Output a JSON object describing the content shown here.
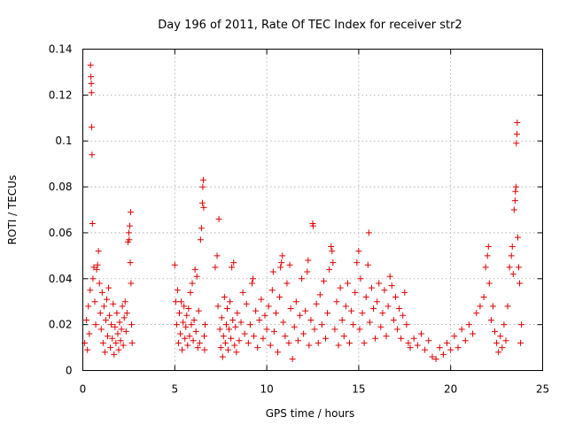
{
  "chart_data": {
    "type": "scatter",
    "title": "Day 196 of 2011, Rate Of TEC Index for receiver str2",
    "xlabel": "GPS time / hours",
    "ylabel": "ROTI / TECUs",
    "xlim": [
      0,
      25
    ],
    "ylim": [
      0,
      0.14
    ],
    "xticks": [
      "0",
      "5",
      "10",
      "15",
      "20",
      "25"
    ],
    "yticks": [
      "0",
      "0.02",
      "0.04",
      "0.06",
      "0.08",
      "0.1",
      "0.12",
      "0.14"
    ],
    "grid": true,
    "marker": "+",
    "color": "#e00000",
    "series": [
      {
        "points": [
          [
            0.1,
            0.012
          ],
          [
            0.2,
            0.022
          ],
          [
            0.25,
            0.009
          ],
          [
            0.3,
            0.028
          ],
          [
            0.35,
            0.016
          ],
          [
            0.4,
            0.035
          ],
          [
            0.42,
            0.133
          ],
          [
            0.44,
            0.128
          ],
          [
            0.46,
            0.125
          ],
          [
            0.47,
            0.121
          ],
          [
            0.48,
            0.106
          ],
          [
            0.5,
            0.094
          ],
          [
            0.52,
            0.064
          ],
          [
            0.55,
            0.04
          ],
          [
            0.6,
            0.045
          ],
          [
            0.65,
            0.03
          ],
          [
            0.7,
            0.02
          ],
          [
            0.75,
            0.044
          ],
          [
            0.8,
            0.046
          ],
          [
            0.85,
            0.052
          ],
          [
            0.9,
            0.038
          ],
          [
            0.95,
            0.025
          ],
          [
            1.0,
            0.018
          ],
          [
            1.05,
            0.034
          ],
          [
            1.1,
            0.012
          ],
          [
            1.15,
            0.028
          ],
          [
            1.2,
            0.008
          ],
          [
            1.25,
            0.022
          ],
          [
            1.3,
            0.031
          ],
          [
            1.35,
            0.015
          ],
          [
            1.4,
            0.036
          ],
          [
            1.45,
            0.024
          ],
          [
            1.5,
            0.01
          ],
          [
            1.55,
            0.02
          ],
          [
            1.6,
            0.014
          ],
          [
            1.65,
            0.029
          ],
          [
            1.7,
            0.007
          ],
          [
            1.75,
            0.019
          ],
          [
            1.8,
            0.012
          ],
          [
            1.85,
            0.025
          ],
          [
            1.9,
            0.016
          ],
          [
            1.95,
            0.009
          ],
          [
            2.0,
            0.021
          ],
          [
            2.05,
            0.013
          ],
          [
            2.1,
            0.018
          ],
          [
            2.15,
            0.028
          ],
          [
            2.2,
            0.011
          ],
          [
            2.25,
            0.023
          ],
          [
            2.3,
            0.03
          ],
          [
            2.35,
            0.017
          ],
          [
            2.4,
            0.025
          ],
          [
            2.45,
            0.056
          ],
          [
            2.5,
            0.06
          ],
          [
            2.52,
            0.057
          ],
          [
            2.55,
            0.063
          ],
          [
            2.58,
            0.047
          ],
          [
            2.6,
            0.069
          ],
          [
            2.62,
            0.038
          ],
          [
            2.65,
            0.02
          ],
          [
            2.68,
            0.012
          ],
          [
            5.0,
            0.046
          ],
          [
            5.05,
            0.03
          ],
          [
            5.1,
            0.02
          ],
          [
            5.15,
            0.035
          ],
          [
            5.2,
            0.012
          ],
          [
            5.25,
            0.025
          ],
          [
            5.3,
            0.016
          ],
          [
            5.35,
            0.03
          ],
          [
            5.4,
            0.009
          ],
          [
            5.45,
            0.021
          ],
          [
            5.5,
            0.028
          ],
          [
            5.55,
            0.014
          ],
          [
            5.6,
            0.019
          ],
          [
            5.65,
            0.024
          ],
          [
            5.7,
            0.011
          ],
          [
            5.75,
            0.027
          ],
          [
            5.8,
            0.015
          ],
          [
            5.85,
            0.034
          ],
          [
            5.9,
            0.02
          ],
          [
            5.95,
            0.038
          ],
          [
            6.0,
            0.013
          ],
          [
            6.05,
            0.022
          ],
          [
            6.1,
            0.044
          ],
          [
            6.15,
            0.017
          ],
          [
            6.2,
            0.041
          ],
          [
            6.25,
            0.01
          ],
          [
            6.3,
            0.026
          ],
          [
            6.35,
            0.012
          ],
          [
            6.4,
            0.057
          ],
          [
            6.45,
            0.062
          ],
          [
            6.5,
            0.073
          ],
          [
            6.52,
            0.08
          ],
          [
            6.55,
            0.083
          ],
          [
            6.57,
            0.071
          ],
          [
            6.6,
            0.015
          ],
          [
            6.62,
            0.009
          ],
          [
            6.65,
            0.02
          ],
          [
            7.2,
            0.045
          ],
          [
            7.3,
            0.05
          ],
          [
            7.35,
            0.028
          ],
          [
            7.4,
            0.066
          ],
          [
            7.45,
            0.018
          ],
          [
            7.5,
            0.01
          ],
          [
            7.55,
            0.023
          ],
          [
            7.6,
            0.006
          ],
          [
            7.65,
            0.015
          ],
          [
            7.7,
            0.032
          ],
          [
            7.75,
            0.012
          ],
          [
            7.8,
            0.02
          ],
          [
            7.85,
            0.027
          ],
          [
            7.9,
            0.009
          ],
          [
            7.95,
            0.018
          ],
          [
            8.0,
            0.03
          ],
          [
            8.05,
            0.014
          ],
          [
            8.1,
            0.045
          ],
          [
            8.15,
            0.022
          ],
          [
            8.2,
            0.047
          ],
          [
            8.25,
            0.011
          ],
          [
            8.3,
            0.019
          ],
          [
            8.35,
            0.008
          ],
          [
            8.4,
            0.025
          ],
          [
            8.5,
            0.013
          ],
          [
            8.6,
            0.021
          ],
          [
            8.7,
            0.034
          ],
          [
            8.8,
            0.016
          ],
          [
            8.9,
            0.029
          ],
          [
            9.0,
            0.012
          ],
          [
            9.1,
            0.02
          ],
          [
            9.2,
            0.038
          ],
          [
            9.25,
            0.04
          ],
          [
            9.3,
            0.015
          ],
          [
            9.4,
            0.026
          ],
          [
            9.5,
            0.01
          ],
          [
            9.6,
            0.022
          ],
          [
            9.7,
            0.031
          ],
          [
            9.8,
            0.014
          ],
          [
            9.9,
            0.024
          ],
          [
            10.0,
            0.018
          ],
          [
            10.1,
            0.028
          ],
          [
            10.2,
            0.011
          ],
          [
            10.3,
            0.035
          ],
          [
            10.35,
            0.043
          ],
          [
            10.4,
            0.017
          ],
          [
            10.5,
            0.025
          ],
          [
            10.6,
            0.008
          ],
          [
            10.7,
            0.032
          ],
          [
            10.75,
            0.045
          ],
          [
            10.8,
            0.047
          ],
          [
            10.85,
            0.05
          ],
          [
            10.9,
            0.021
          ],
          [
            11.0,
            0.015
          ],
          [
            11.1,
            0.038
          ],
          [
            11.2,
            0.012
          ],
          [
            11.25,
            0.046
          ],
          [
            11.3,
            0.027
          ],
          [
            11.4,
            0.005
          ],
          [
            11.5,
            0.019
          ],
          [
            11.6,
            0.03
          ],
          [
            11.7,
            0.013
          ],
          [
            11.8,
            0.024
          ],
          [
            11.9,
            0.04
          ],
          [
            12.0,
            0.016
          ],
          [
            12.1,
            0.026
          ],
          [
            12.2,
            0.043
          ],
          [
            12.25,
            0.048
          ],
          [
            12.3,
            0.011
          ],
          [
            12.4,
            0.022
          ],
          [
            12.5,
            0.064
          ],
          [
            12.52,
            0.063
          ],
          [
            12.6,
            0.018
          ],
          [
            12.7,
            0.029
          ],
          [
            12.8,
            0.012
          ],
          [
            12.9,
            0.033
          ],
          [
            13.0,
            0.02
          ],
          [
            13.1,
            0.039
          ],
          [
            13.2,
            0.014
          ],
          [
            13.3,
            0.025
          ],
          [
            13.4,
            0.044
          ],
          [
            13.5,
            0.054
          ],
          [
            13.55,
            0.052
          ],
          [
            13.6,
            0.047
          ],
          [
            13.7,
            0.018
          ],
          [
            13.8,
            0.03
          ],
          [
            13.9,
            0.011
          ],
          [
            14.0,
            0.036
          ],
          [
            14.1,
            0.022
          ],
          [
            14.2,
            0.015
          ],
          [
            14.3,
            0.028
          ],
          [
            14.4,
            0.038
          ],
          [
            14.5,
            0.012
          ],
          [
            14.6,
            0.026
          ],
          [
            14.7,
            0.02
          ],
          [
            14.8,
            0.034
          ],
          [
            14.9,
            0.047
          ],
          [
            15.0,
            0.052
          ],
          [
            15.05,
            0.018
          ],
          [
            15.1,
            0.04
          ],
          [
            15.2,
            0.025
          ],
          [
            15.3,
            0.012
          ],
          [
            15.4,
            0.032
          ],
          [
            15.5,
            0.046
          ],
          [
            15.55,
            0.06
          ],
          [
            15.6,
            0.021
          ],
          [
            15.7,
            0.036
          ],
          [
            15.8,
            0.027
          ],
          [
            15.9,
            0.014
          ],
          [
            16.0,
            0.03
          ],
          [
            16.1,
            0.038
          ],
          [
            16.2,
            0.019
          ],
          [
            16.3,
            0.025
          ],
          [
            16.4,
            0.035
          ],
          [
            16.5,
            0.015
          ],
          [
            16.6,
            0.028
          ],
          [
            16.7,
            0.041
          ],
          [
            16.8,
            0.037
          ],
          [
            16.9,
            0.022
          ],
          [
            17.0,
            0.032
          ],
          [
            17.1,
            0.018
          ],
          [
            17.2,
            0.027
          ],
          [
            17.3,
            0.014
          ],
          [
            17.4,
            0.024
          ],
          [
            17.5,
            0.034
          ],
          [
            17.6,
            0.02
          ],
          [
            17.7,
            0.012
          ],
          [
            17.8,
            0.01
          ],
          [
            18.0,
            0.014
          ],
          [
            18.2,
            0.011
          ],
          [
            18.4,
            0.016
          ],
          [
            18.6,
            0.009
          ],
          [
            18.8,
            0.013
          ],
          [
            19.0,
            0.006
          ],
          [
            19.2,
            0.005
          ],
          [
            19.4,
            0.01
          ],
          [
            19.6,
            0.007
          ],
          [
            19.8,
            0.012
          ],
          [
            20.0,
            0.009
          ],
          [
            20.2,
            0.015
          ],
          [
            20.4,
            0.01
          ],
          [
            20.6,
            0.018
          ],
          [
            20.8,
            0.013
          ],
          [
            21.0,
            0.02
          ],
          [
            21.2,
            0.016
          ],
          [
            21.4,
            0.025
          ],
          [
            21.6,
            0.028
          ],
          [
            21.8,
            0.032
          ],
          [
            21.9,
            0.045
          ],
          [
            22.0,
            0.05
          ],
          [
            22.05,
            0.054
          ],
          [
            22.1,
            0.038
          ],
          [
            22.2,
            0.022
          ],
          [
            22.3,
            0.028
          ],
          [
            22.4,
            0.017
          ],
          [
            22.5,
            0.012
          ],
          [
            22.6,
            0.008
          ],
          [
            22.7,
            0.015
          ],
          [
            22.8,
            0.01
          ],
          [
            22.9,
            0.02
          ],
          [
            23.0,
            0.013
          ],
          [
            23.1,
            0.028
          ],
          [
            23.2,
            0.045
          ],
          [
            23.3,
            0.05
          ],
          [
            23.35,
            0.054
          ],
          [
            23.4,
            0.042
          ],
          [
            23.45,
            0.07
          ],
          [
            23.5,
            0.074
          ],
          [
            23.52,
            0.078
          ],
          [
            23.55,
            0.08
          ],
          [
            23.57,
            0.099
          ],
          [
            23.6,
            0.103
          ],
          [
            23.62,
            0.108
          ],
          [
            23.65,
            0.058
          ],
          [
            23.7,
            0.045
          ],
          [
            23.75,
            0.038
          ],
          [
            23.8,
            0.012
          ],
          [
            23.85,
            0.02
          ]
        ]
      }
    ]
  }
}
